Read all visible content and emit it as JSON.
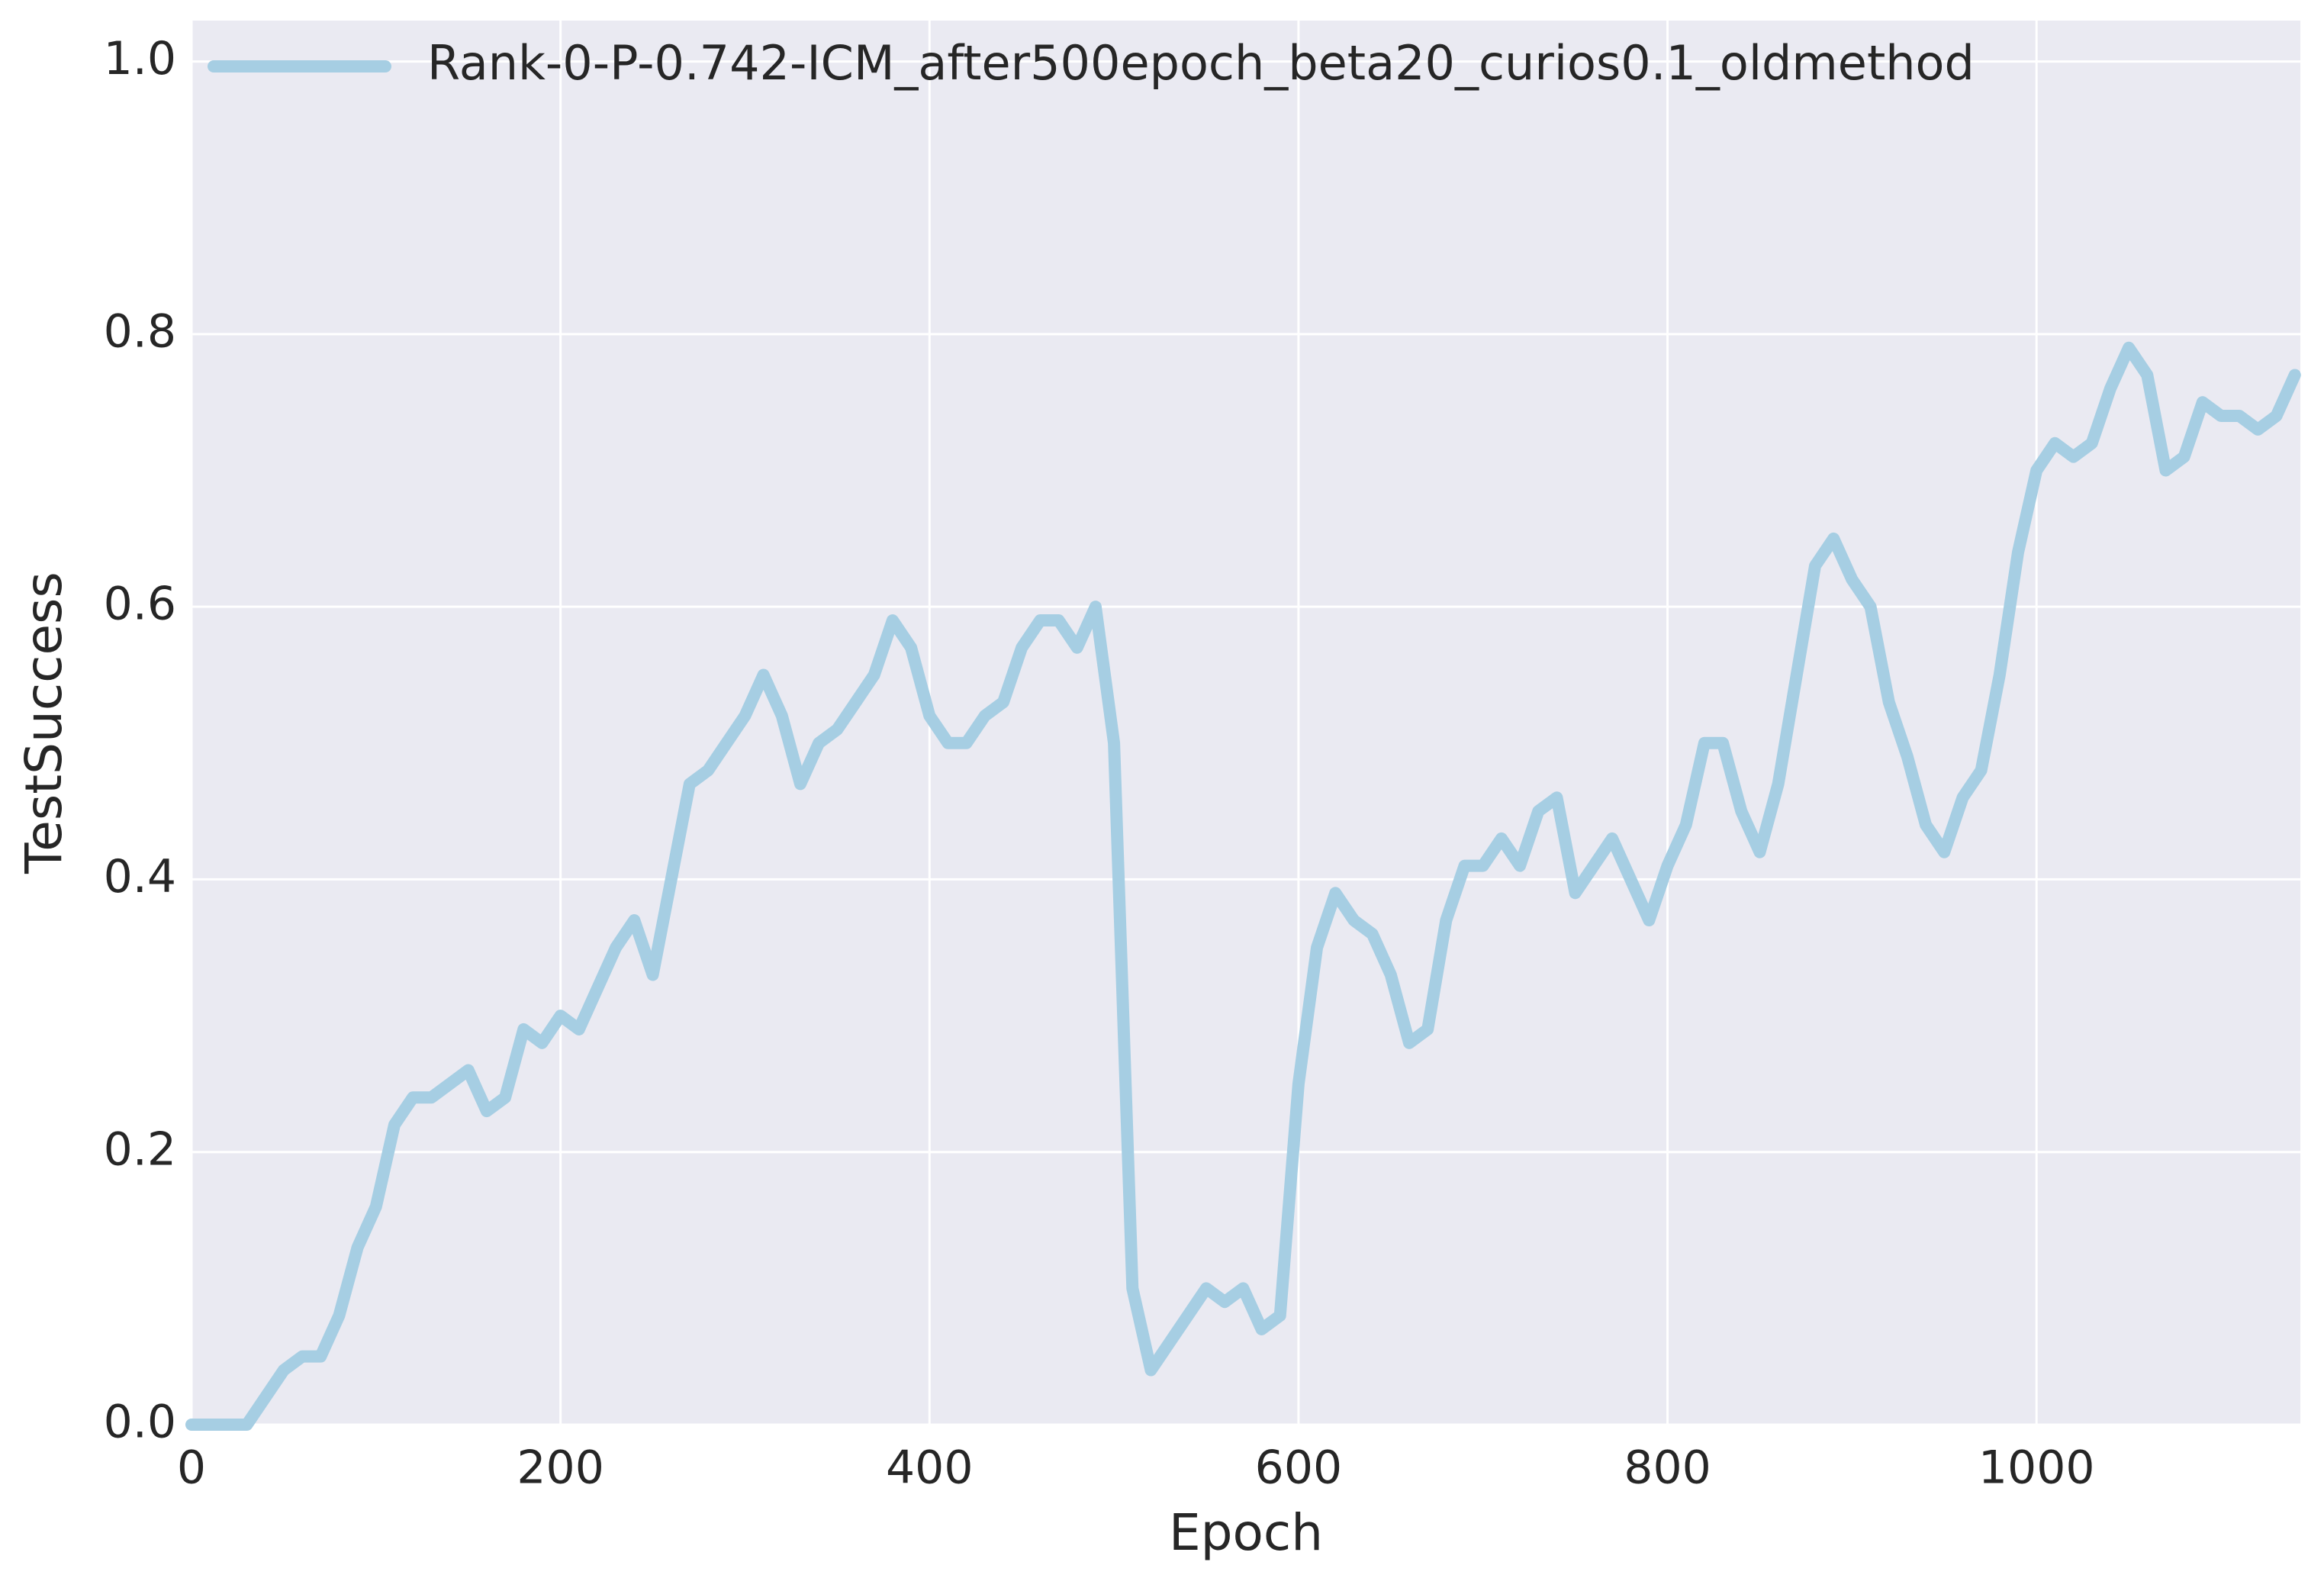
{
  "chart_data": {
    "type": "line",
    "xlabel": "Epoch",
    "ylabel": "TestSuccess",
    "x": [
      0,
      10,
      20,
      30,
      40,
      50,
      60,
      70,
      80,
      90,
      100,
      110,
      120,
      130,
      140,
      150,
      160,
      170,
      180,
      190,
      200,
      210,
      220,
      230,
      240,
      250,
      260,
      270,
      280,
      290,
      300,
      310,
      320,
      330,
      340,
      350,
      360,
      370,
      380,
      390,
      400,
      410,
      420,
      430,
      440,
      450,
      460,
      470,
      480,
      490,
      500,
      510,
      520,
      530,
      540,
      550,
      560,
      570,
      580,
      590,
      600,
      610,
      620,
      630,
      640,
      650,
      660,
      670,
      680,
      690,
      700,
      710,
      720,
      730,
      740,
      750,
      760,
      770,
      780,
      790,
      800,
      810,
      820,
      830,
      840,
      850,
      860,
      870,
      880,
      890,
      900,
      910,
      920,
      930,
      940,
      950,
      960,
      970,
      980,
      990,
      1000,
      1010,
      1020,
      1030,
      1040,
      1050,
      1060,
      1070,
      1080,
      1090,
      1100,
      1110,
      1120,
      1130,
      1140
    ],
    "series": [
      {
        "name": "Rank-0-P-0.742-ICM_after500epoch_beta20_curios0.1_oldmethod",
        "color": "#a6cee3",
        "values": [
          0,
          0,
          0,
          0,
          0.02,
          0.04,
          0.05,
          0.05,
          0.08,
          0.13,
          0.16,
          0.22,
          0.24,
          0.24,
          0.25,
          0.26,
          0.23,
          0.24,
          0.29,
          0.28,
          0.3,
          0.29,
          0.32,
          0.35,
          0.37,
          0.33,
          0.4,
          0.47,
          0.48,
          0.5,
          0.52,
          0.55,
          0.52,
          0.47,
          0.5,
          0.51,
          0.53,
          0.55,
          0.59,
          0.57,
          0.52,
          0.5,
          0.5,
          0.52,
          0.53,
          0.57,
          0.59,
          0.59,
          0.57,
          0.6,
          0.5,
          0.1,
          0.04,
          0.06,
          0.08,
          0.1,
          0.09,
          0.1,
          0.07,
          0.08,
          0.25,
          0.35,
          0.39,
          0.37,
          0.36,
          0.33,
          0.28,
          0.29,
          0.37,
          0.41,
          0.41,
          0.43,
          0.41,
          0.45,
          0.46,
          0.39,
          0.41,
          0.43,
          0.4,
          0.37,
          0.41,
          0.44,
          0.5,
          0.5,
          0.45,
          0.42,
          0.47,
          0.55,
          0.63,
          0.65,
          0.62,
          0.6,
          0.53,
          0.49,
          0.44,
          0.42,
          0.46,
          0.48,
          0.55,
          0.64,
          0.7,
          0.72,
          0.71,
          0.72,
          0.76,
          0.79,
          0.77,
          0.7,
          0.71,
          0.75,
          0.74,
          0.74,
          0.73,
          0.74,
          0.77
        ]
      }
    ],
    "xlim": [
      0,
      1143
    ],
    "ylim": [
      0,
      1.03
    ],
    "xticks": [
      0,
      200,
      400,
      600,
      800,
      1000
    ],
    "yticks": [
      {
        "value": 0,
        "label": "0.0"
      },
      0.2,
      0.4,
      0.6,
      0.8,
      {
        "value": 1,
        "label": "1.0"
      }
    ],
    "grid": true,
    "legend": "upper left"
  }
}
